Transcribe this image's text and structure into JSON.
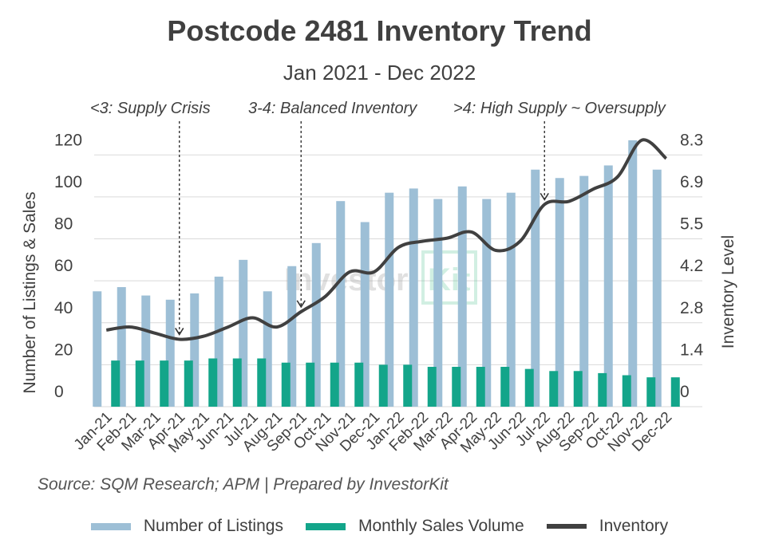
{
  "chart_data": {
    "type": "bar",
    "title": "Postcode 2481 Inventory Trend",
    "subtitle": "Jan 2021 - Dec 2022",
    "categories": [
      "Jan-21",
      "Feb-21",
      "Mar-21",
      "Apr-21",
      "May-21",
      "Jun-21",
      "Jul-21",
      "Aug-21",
      "Sep-21",
      "Oct-21",
      "Nov-21",
      "Dec-21",
      "Jan-22",
      "Feb-22",
      "Mar-22",
      "Apr-22",
      "May-22",
      "Jun-22",
      "Jul-22",
      "Aug-22",
      "Sep-22",
      "Oct-22",
      "Nov-22",
      "Dec-22"
    ],
    "series": [
      {
        "name": "Number of Listings",
        "type": "bar",
        "axis": "left",
        "color": "#9dbfd6",
        "values": [
          55,
          57,
          53,
          51,
          54,
          62,
          70,
          55,
          67,
          78,
          98,
          88,
          102,
          104,
          99,
          105,
          99,
          102,
          113,
          109,
          110,
          115,
          127,
          113
        ]
      },
      {
        "name": "Monthly Sales Volume",
        "type": "bar",
        "axis": "left",
        "color": "#13a58a",
        "values": [
          22,
          22,
          22,
          22,
          23,
          23,
          23,
          21,
          21,
          21,
          21,
          20,
          20,
          19,
          19,
          19,
          19,
          18,
          17,
          17,
          16,
          15,
          14,
          14
        ]
      },
      {
        "name": "Inventory",
        "type": "line",
        "axis": "right",
        "color": "#404040",
        "values": [
          2.5,
          2.6,
          2.4,
          2.2,
          2.3,
          2.6,
          2.9,
          2.6,
          3.1,
          3.6,
          4.4,
          4.4,
          5.2,
          5.4,
          5.5,
          5.7,
          5.1,
          5.4,
          6.6,
          6.7,
          7.1,
          7.5,
          8.7,
          8.1
        ]
      }
    ],
    "ylabel": "Number of Listings & Sales",
    "y2label": "Inventory Level",
    "ylim": [
      0,
      130
    ],
    "y2lim": [
      0,
      8.9
    ],
    "yticks": [
      0,
      20,
      40,
      60,
      80,
      100,
      120
    ],
    "y2ticks": [
      "0",
      "1.4",
      "2.8",
      "4.2",
      "5.5",
      "6.9",
      "8.3"
    ],
    "annotations": [
      {
        "text": "<3: Supply Crisis",
        "target_index": 3,
        "target_value": 2.2
      },
      {
        "text": "3-4: Balanced Inventory",
        "target_index": 8,
        "target_value": 3.1
      },
      {
        "text": ">4: High Supply ~ Oversupply",
        "target_index": 18,
        "target_value": 6.6
      }
    ],
    "grid": true,
    "legend": "bottom",
    "watermark": "InvestorKit"
  },
  "source": "Source: SQM Research; APM | Prepared by InvestorKit",
  "legend": [
    {
      "label": "Number of Listings",
      "color": "#9dbfd6"
    },
    {
      "label": "Monthly Sales Volume",
      "color": "#13a58a"
    },
    {
      "label": "Inventory",
      "color": "#404040"
    }
  ]
}
